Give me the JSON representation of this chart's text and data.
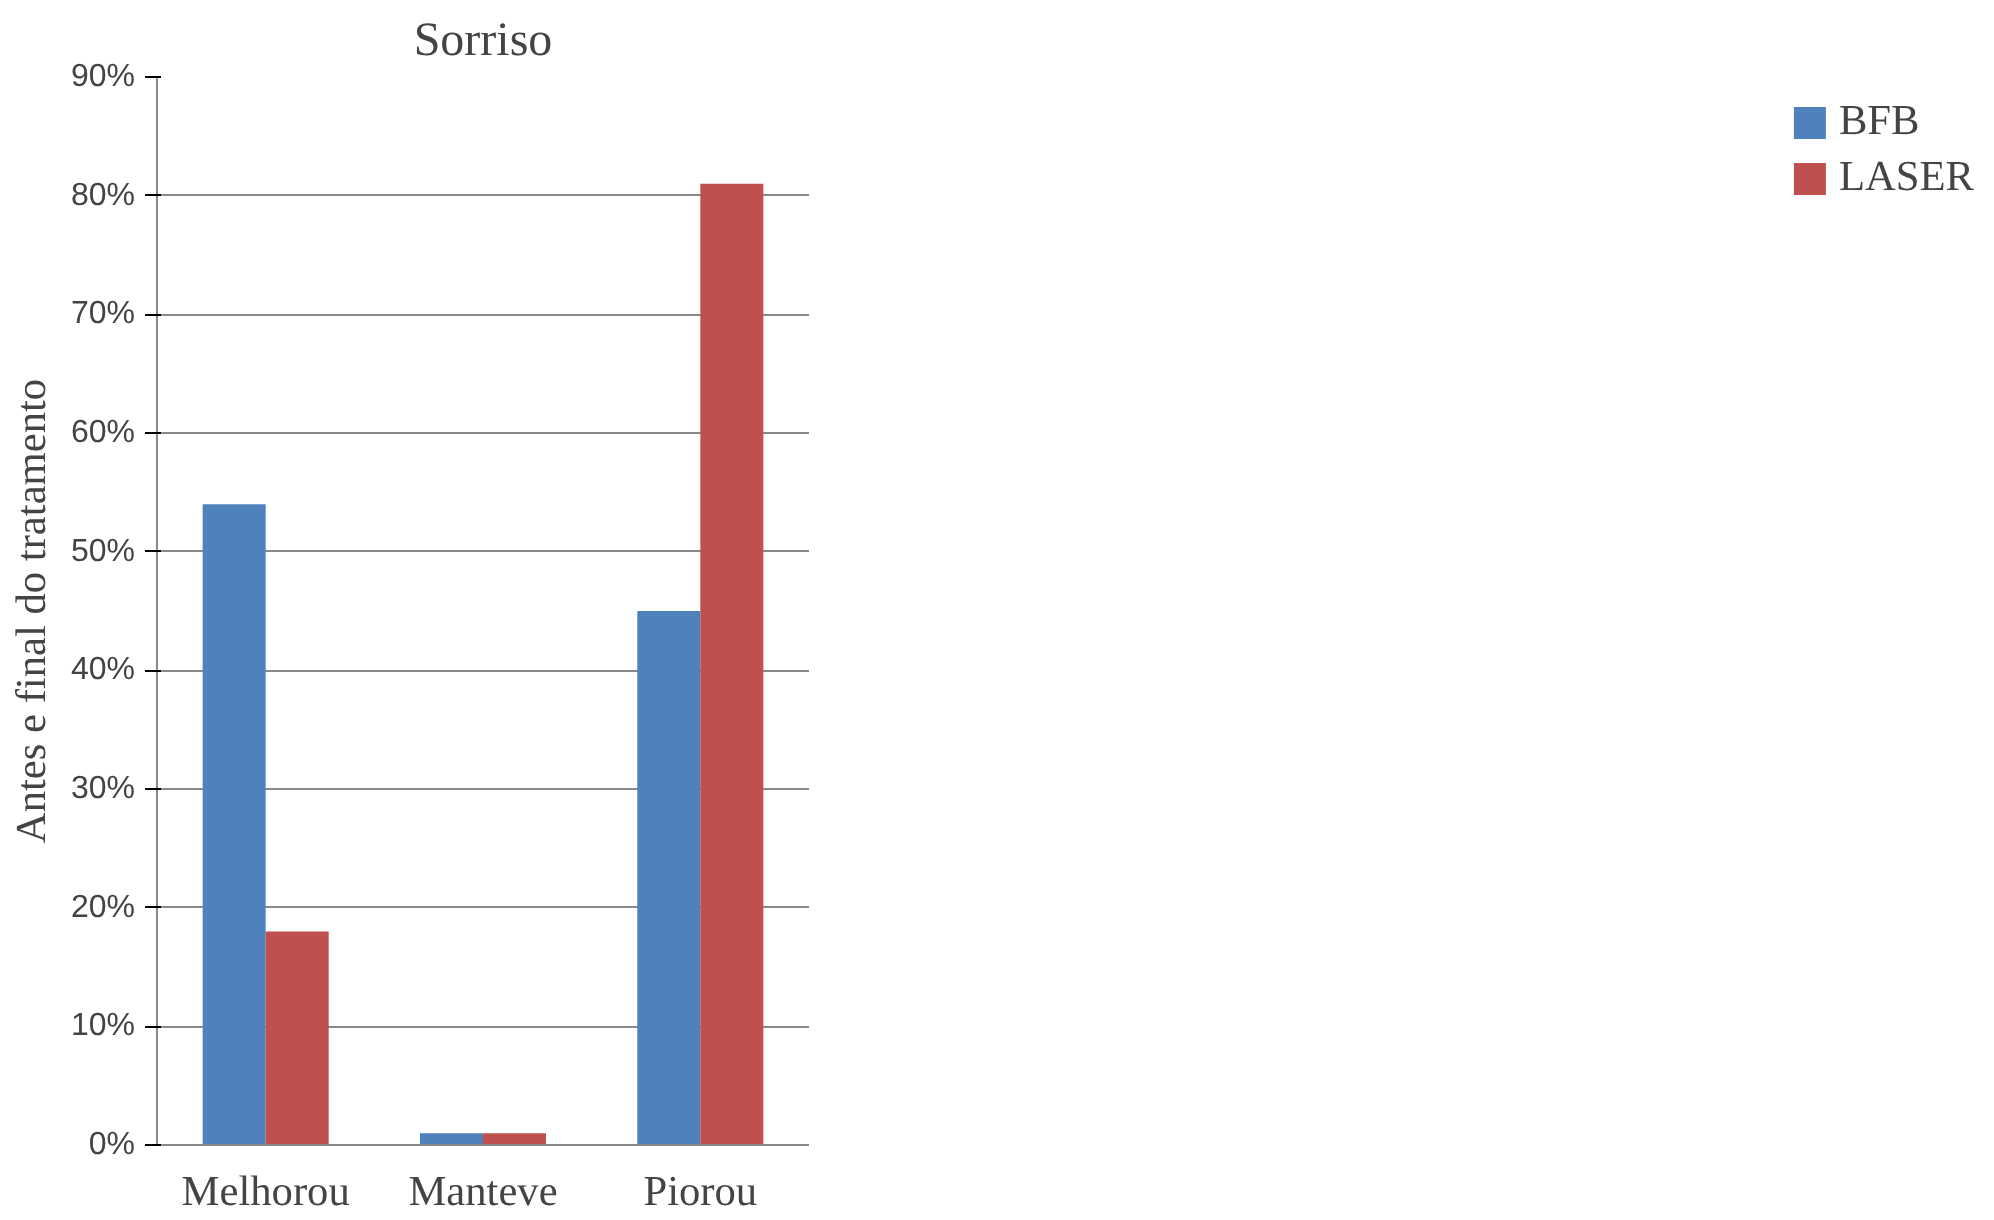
{
  "chart_data": {
    "type": "bar",
    "title": "Sorriso",
    "ylabel": "Antes e final do tratamento",
    "categories": [
      "Melhorou",
      "Manteve",
      "Piorou"
    ],
    "series": [
      {
        "name": "BFB",
        "color": "#4f81bd",
        "values": [
          54,
          1,
          45
        ]
      },
      {
        "name": "LASER",
        "color": "#c0504d",
        "values": [
          18,
          1,
          81
        ]
      }
    ],
    "ylim": [
      0,
      90
    ],
    "yticks": [
      {
        "value": 0,
        "label": "0%"
      },
      {
        "value": 10,
        "label": "10%"
      },
      {
        "value": 20,
        "label": "20%"
      },
      {
        "value": 30,
        "label": "30%"
      },
      {
        "value": 40,
        "label": "40%"
      },
      {
        "value": 50,
        "label": "50%"
      },
      {
        "value": 60,
        "label": "60%"
      },
      {
        "value": 70,
        "label": "70%"
      },
      {
        "value": 80,
        "label": "80%"
      },
      {
        "value": 90,
        "label": "90%"
      }
    ],
    "grid": "y",
    "legend": "right"
  }
}
